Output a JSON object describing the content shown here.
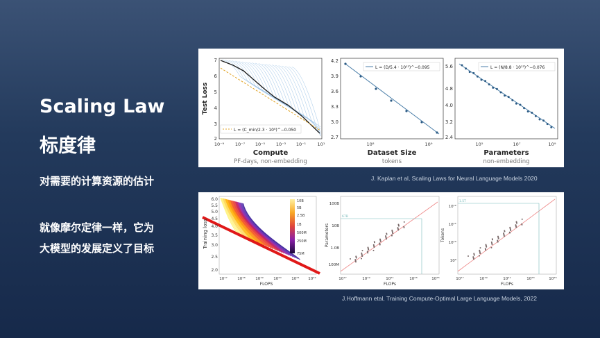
{
  "slide": {
    "title": "Scaling Law",
    "subtitle": "标度律",
    "line1": "对需要的计算资源的估计",
    "line2": "就像摩尔定律一样，它为",
    "line3": "大模型的发展定义了目标"
  },
  "kaplan": {
    "caption": "J. Kaplan et al, Scaling Laws for Neural Language Models 2020",
    "plots": [
      {
        "ylabel": "Test Loss",
        "xlabel": "Compute",
        "xsub": "PF-days, non-embedding",
        "yticks": [
          "7",
          "6",
          "5",
          "4",
          "3",
          "2"
        ],
        "xticks": [
          "10⁻⁹",
          "10⁻⁷",
          "10⁻⁵",
          "10⁻³",
          "10⁻¹",
          "10¹"
        ],
        "legend": "L = (C_min/2.3 · 10⁸)^−0.050"
      },
      {
        "xlabel": "Dataset Size",
        "xsub": "tokens",
        "yticks": [
          "4.2",
          "3.9",
          "3.6",
          "3.3",
          "3.0",
          "2.7"
        ],
        "xticks": [
          "10⁸",
          "10⁹"
        ],
        "legend": "L = (D/5.4 · 10¹³)^−0.095"
      },
      {
        "xlabel": "Parameters",
        "xsub": "non-embedding",
        "yticks": [
          "5.6",
          "4.8",
          "4.0",
          "3.2",
          "2.4"
        ],
        "xticks": [
          "10⁵",
          "10⁷",
          "10⁹"
        ],
        "legend": "L = (N/8.8 · 10¹³)^−0.076"
      }
    ]
  },
  "hoffmann": {
    "caption": "J.Hoffmann etal, Training Compute-Optimal Large Language Models, 2022",
    "plot1": {
      "ylabel": "Training loss",
      "xlabel": "FLOPS",
      "yticks": [
        "6.0",
        "5.5",
        "5.0",
        "4.5",
        "4.0",
        "3.5",
        "3.0",
        "2.5",
        "2.0"
      ],
      "xticks": [
        "10¹⁷",
        "10¹⁸",
        "10¹⁹",
        "10²⁰",
        "10²¹",
        "10²²"
      ],
      "colorbar": [
        "10B",
        "5B",
        "2.5B",
        "1B",
        "500M",
        "250M",
        "75M"
      ]
    },
    "plot2": {
      "ylabel": "Parameters",
      "xlabel": "FLOPs",
      "yticks": [
        "100B",
        "10B",
        "1.0B",
        "100M"
      ],
      "xticks": [
        "10¹⁷",
        "10¹⁹",
        "10²¹",
        "10²³",
        "10²⁵"
      ],
      "marker": "67B"
    },
    "plot3": {
      "ylabel": "Tokens",
      "xlabel": "FLOPs",
      "yticks": [
        "10¹²",
        "10¹¹",
        "10¹⁰",
        "10⁹"
      ],
      "xticks": [
        "10¹⁷",
        "10¹⁹",
        "10²¹",
        "10²³",
        "10²⁵"
      ],
      "marker": "1.5T"
    }
  }
}
